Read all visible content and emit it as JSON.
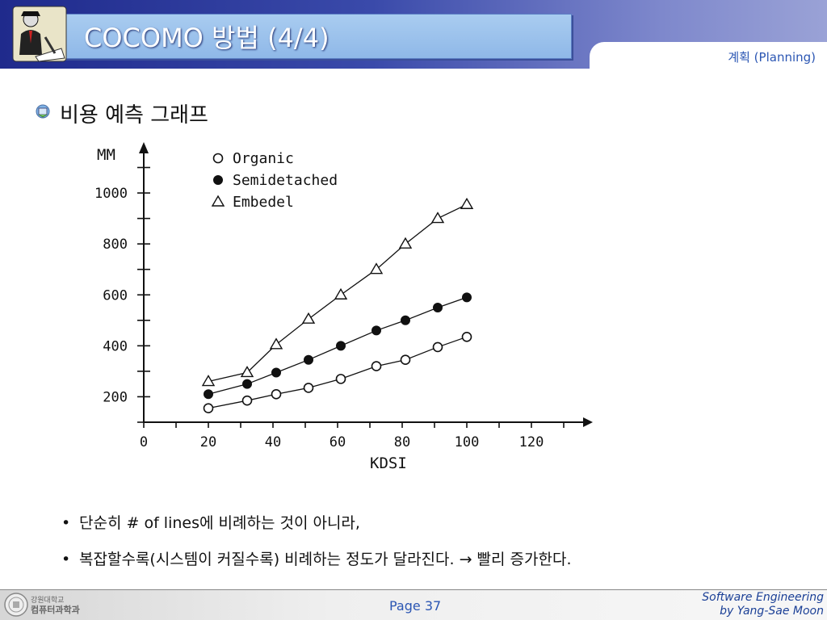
{
  "slide": {
    "title": "COCOMO 방법 (4/4)",
    "section_tab": "계획 (Planning)",
    "heading": "비용 예측 그래프",
    "bullets": [
      "단순히 # of lines에 비례하는 것이 아니라,",
      "복잡할수록(시스템이 커질수록) 비례하는 정도가 달라진다. → 빨리 증가한다."
    ],
    "footer": {
      "page": "Page 37",
      "credit_line1": "Software Engineering",
      "credit_line2": "by Yang-Sae Moon",
      "univ_line1": "강원대학교",
      "univ_line2": "컴퓨터과학과"
    }
  },
  "colors": {
    "header": "#1f2a8c",
    "accent": "#2b56b3"
  },
  "icons": {
    "logo": "writer-icon",
    "bullet": "emblem-bullet-icon"
  },
  "chart_data": {
    "type": "scatter",
    "xlabel": "KDSI",
    "ylabel": "MM",
    "xlim": [
      0,
      130
    ],
    "ylim": [
      100,
      1100
    ],
    "x_ticks": [
      "0",
      "20",
      "40",
      "60",
      "80",
      "100",
      "120"
    ],
    "y_ticks": [
      "200",
      "400",
      "600",
      "800",
      "1000"
    ],
    "series": [
      {
        "name": "Organic",
        "marker": "open-circle",
        "x": [
          20,
          32,
          41,
          51,
          61,
          72,
          81,
          91,
          100
        ],
        "y": [
          155,
          185,
          210,
          235,
          270,
          320,
          345,
          395,
          435
        ]
      },
      {
        "name": "Semidetached",
        "marker": "filled-circle",
        "x": [
          20,
          32,
          41,
          51,
          61,
          72,
          81,
          91,
          100
        ],
        "y": [
          210,
          250,
          295,
          345,
          400,
          460,
          500,
          550,
          590
        ]
      },
      {
        "name": "Embedel",
        "marker": "open-triangle",
        "x": [
          20,
          32,
          41,
          51,
          61,
          72,
          81,
          91,
          100
        ],
        "y": [
          260,
          295,
          405,
          505,
          600,
          700,
          800,
          900,
          955
        ]
      }
    ]
  }
}
